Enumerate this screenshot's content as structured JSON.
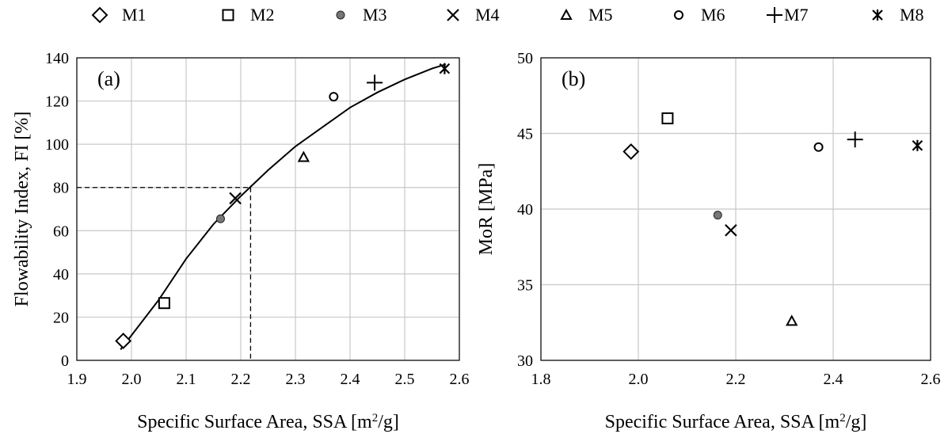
{
  "legend": {
    "placement": "top",
    "entries": [
      {
        "label": "M1",
        "marker": "diamond-open-icon"
      },
      {
        "label": "M2",
        "marker": "square-open-icon"
      },
      {
        "label": "M3",
        "marker": "circle-filled-gray-icon"
      },
      {
        "label": "M4",
        "marker": "x-cross-icon"
      },
      {
        "label": "M5",
        "marker": "triangle-open-icon"
      },
      {
        "label": "M6",
        "marker": "circle-open-icon"
      },
      {
        "label": "M7",
        "marker": "plus-icon"
      },
      {
        "label": "M8",
        "marker": "asterisk-icon"
      }
    ]
  },
  "chart_data": [
    {
      "type": "scatter",
      "panel_label": "(a)",
      "xlabel": "Specific Surface Area, SSA [m2/g]",
      "xlabel_parts": {
        "before": "Specific Surface Area, SSA [m",
        "sup": "2",
        "after": "/g]"
      },
      "ylabel": "Flowability Index, FI [%]",
      "xlim": [
        1.9,
        2.6
      ],
      "ylim": [
        0,
        140
      ],
      "xticks": [
        "1.9",
        "2.0",
        "2.1",
        "2.2",
        "2.3",
        "2.4",
        "2.5",
        "2.6"
      ],
      "yticks": [
        "0",
        "20",
        "40",
        "60",
        "80",
        "100",
        "120",
        "140"
      ],
      "grid": true,
      "series": [
        {
          "name": "M1",
          "x": [
            1.985
          ],
          "y": [
            9
          ]
        },
        {
          "name": "M2",
          "x": [
            2.06
          ],
          "y": [
            26.5
          ]
        },
        {
          "name": "M3",
          "x": [
            2.163
          ],
          "y": [
            65.5
          ]
        },
        {
          "name": "M4",
          "x": [
            2.19
          ],
          "y": [
            75
          ]
        },
        {
          "name": "M5",
          "x": [
            2.315
          ],
          "y": [
            94
          ]
        },
        {
          "name": "M6",
          "x": [
            2.37
          ],
          "y": [
            122
          ]
        },
        {
          "name": "M7",
          "x": [
            2.445
          ],
          "y": [
            128.5
          ]
        },
        {
          "name": "M8",
          "x": [
            2.573
          ],
          "y": [
            135
          ]
        }
      ],
      "trend_curve": {
        "x": [
          1.98,
          2.05,
          2.1,
          2.15,
          2.2,
          2.25,
          2.3,
          2.35,
          2.4,
          2.45,
          2.5,
          2.55,
          2.575
        ],
        "y": [
          5,
          28,
          47,
          63,
          76,
          88,
          99,
          108,
          117,
          124,
          130,
          135,
          137
        ]
      },
      "reference_lines": {
        "x": 2.218,
        "y": 80
      }
    },
    {
      "type": "scatter",
      "panel_label": "(b)",
      "xlabel": "Specific Surface Area, SSA [m2/g]",
      "xlabel_parts": {
        "before": "Specific Surface Area, SSA [m",
        "sup": "2",
        "after": "/g]"
      },
      "ylabel": "MoR [MPa]",
      "xlim": [
        1.8,
        2.6
      ],
      "ylim": [
        30,
        50
      ],
      "xticks": [
        "1.8",
        "2.0",
        "2.2",
        "2.4",
        "2.6"
      ],
      "yticks": [
        "30",
        "35",
        "40",
        "45",
        "50"
      ],
      "grid": true,
      "series": [
        {
          "name": "M1",
          "x": [
            1.985
          ],
          "y": [
            43.8
          ]
        },
        {
          "name": "M2",
          "x": [
            2.06
          ],
          "y": [
            46
          ]
        },
        {
          "name": "M3",
          "x": [
            2.163
          ],
          "y": [
            39.6
          ]
        },
        {
          "name": "M4",
          "x": [
            2.19
          ],
          "y": [
            38.6
          ]
        },
        {
          "name": "M5",
          "x": [
            2.315
          ],
          "y": [
            32.6
          ]
        },
        {
          "name": "M6",
          "x": [
            2.37
          ],
          "y": [
            44.1
          ]
        },
        {
          "name": "M7",
          "x": [
            2.445
          ],
          "y": [
            44.6
          ]
        },
        {
          "name": "M8",
          "x": [
            2.573
          ],
          "y": [
            44.2
          ]
        }
      ]
    }
  ]
}
